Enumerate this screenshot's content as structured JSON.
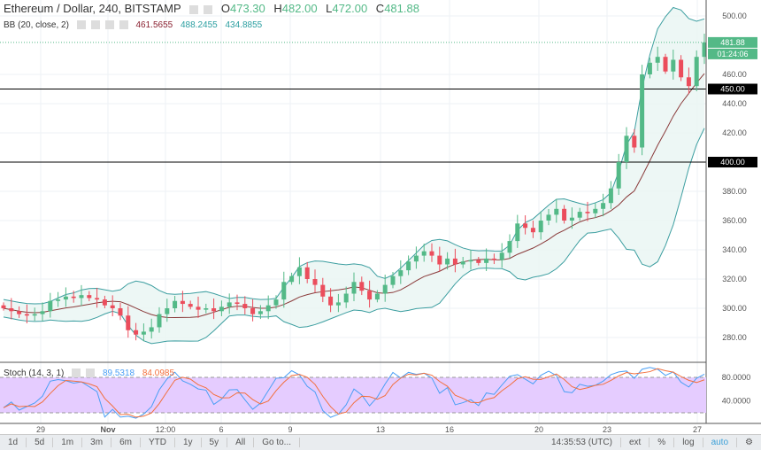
{
  "header": {
    "symbol": "Ethereum / Dollar, 240, BITSTAMP",
    "o_label": "O",
    "o": "473.30",
    "h_label": "H",
    "h": "482.00",
    "l_label": "L",
    "l": "472.00",
    "c_label": "C",
    "c": "481.88"
  },
  "bb": {
    "label": "BB (20, close, 2)",
    "mid": "461.5655",
    "upper": "488.2455",
    "lower": "434.8855"
  },
  "stoch": {
    "label": "Stoch (14, 3, 1)",
    "k": "89.5318",
    "d": "84.0985",
    "axis": [
      "80.0000",
      "40.0000"
    ]
  },
  "price_axis": [
    "500.00",
    "460.00",
    "440.00",
    "420.00",
    "380.00",
    "360.00",
    "340.00",
    "320.00",
    "300.00",
    "280.00"
  ],
  "price_ticks": [
    500,
    460,
    440,
    420,
    380,
    360,
    340,
    320,
    300,
    280
  ],
  "hlines": [
    {
      "label": "450.00",
      "value": 450
    },
    {
      "label": "400.00",
      "value": 400
    }
  ],
  "last_price": {
    "label": "481.88",
    "countdown": "01:24:06"
  },
  "time_axis": [
    "29",
    "Nov",
    "12:00",
    "6",
    "9",
    "13",
    "16",
    "20",
    "23",
    "27"
  ],
  "colors": {
    "up": "#53b987",
    "down": "#eb4d5c",
    "bb_mid": "#8a3b3b",
    "bb_band": "#3c9ea0",
    "k": "#4a9ff5",
    "d": "#f2703e",
    "stoch_fill": "#e5ccff"
  },
  "toolbar": {
    "ranges": [
      "1d",
      "5d",
      "1m",
      "3m",
      "6m",
      "YTD",
      "1y",
      "5y",
      "All",
      "Go to..."
    ],
    "time": "14:35:53 (UTC)",
    "ext": "ext",
    "pct": "%",
    "log": "log",
    "auto": "auto"
  },
  "chart_data": {
    "type": "candlestick",
    "ylim": [
      270,
      505
    ],
    "closes": [
      300,
      298,
      296,
      295,
      296,
      298,
      305,
      306,
      308,
      307,
      309,
      307,
      306,
      302,
      300,
      295,
      285,
      282,
      284,
      287,
      296,
      300,
      305,
      303,
      301,
      299,
      300,
      298,
      301,
      304,
      303,
      300,
      296,
      298,
      302,
      306,
      318,
      322,
      328,
      320,
      316,
      308,
      302,
      304,
      310,
      318,
      312,
      306,
      310,
      316,
      322,
      326,
      332,
      336,
      339,
      336,
      330,
      334,
      330,
      332,
      333,
      331,
      334,
      333,
      338,
      346,
      358,
      355,
      352,
      360,
      364,
      368,
      360,
      362,
      366,
      365,
      368,
      372,
      382,
      400,
      418,
      410,
      460,
      468,
      472,
      462,
      470,
      458,
      452,
      472,
      481.88
    ]
  }
}
